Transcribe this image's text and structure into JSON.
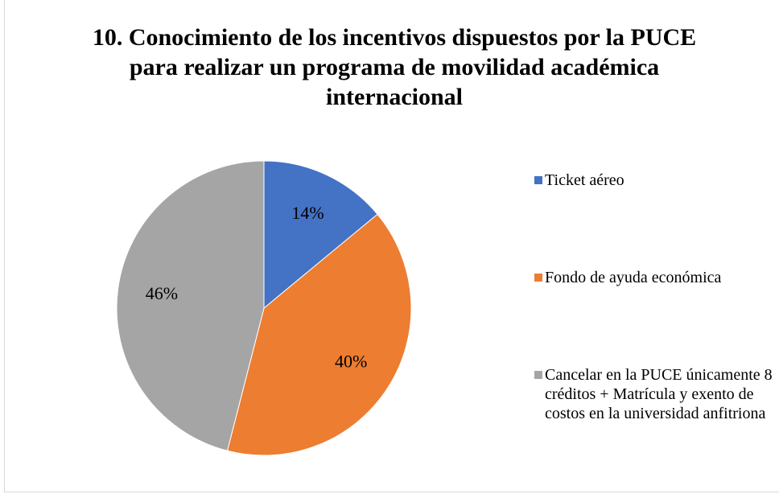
{
  "chart_data": {
    "type": "pie",
    "title": "10. Conocimiento de los incentivos dispuestos por la PUCE para realizar un programa de movilidad académica internacional",
    "categories": [
      "Ticket aéreo",
      "Fondo de ayuda económica",
      "Cancelar en la PUCE únicamente 8 créditos + Matrícula y exento de costos en la universidad anfitriona"
    ],
    "values": [
      14,
      40,
      46
    ],
    "value_labels": [
      "14%",
      "40%",
      "46%"
    ],
    "colors": [
      "#4472c4",
      "#ed7d31",
      "#a5a5a5"
    ],
    "legend": "right"
  }
}
